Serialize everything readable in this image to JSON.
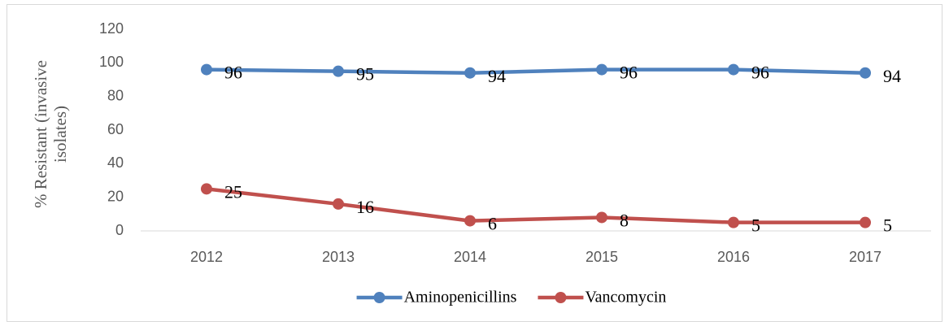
{
  "chart_data": {
    "type": "line",
    "y_label": "% Resistant (invasive isolates)",
    "categories": [
      "2012",
      "2013",
      "2014",
      "2015",
      "2016",
      "2017"
    ],
    "series": [
      {
        "name": "Aminopenicillins",
        "color": "#4f81bd",
        "values": [
          96,
          95,
          94,
          96,
          96,
          94
        ]
      },
      {
        "name": "Vancomycin",
        "color": "#c0504d",
        "values": [
          25,
          16,
          6,
          8,
          5,
          5
        ]
      }
    ],
    "ylim": [
      0,
      120
    ],
    "yticks": [
      0,
      20,
      40,
      60,
      80,
      100,
      120
    ],
    "grid": false,
    "legend": "bottom"
  }
}
